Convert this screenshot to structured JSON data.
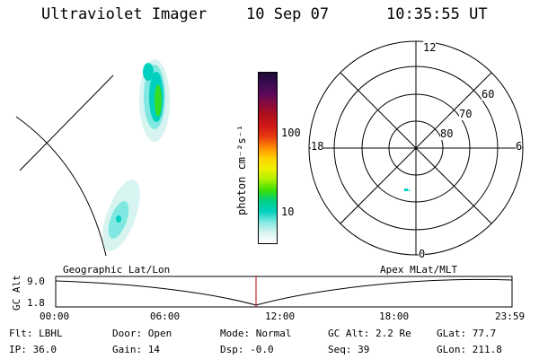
{
  "header": {
    "instrument": "Ultraviolet Imager",
    "date": "10 Sep 07",
    "time": "10:35:55 UT"
  },
  "colorbar": {
    "unit_label": "photon cm⁻²s⁻¹",
    "ticks": [
      "100",
      "10"
    ],
    "colors": [
      "#1a0a33",
      "#3b0a4f",
      "#5a0a5a",
      "#8a0a3a",
      "#b0101a",
      "#d01818",
      "#e83a10",
      "#ff8a00",
      "#ffd000",
      "#f0f000",
      "#b0f000",
      "#40e000",
      "#00d080",
      "#00d0c0",
      "#80e8e0",
      "#d8f4f0",
      "#ffffff"
    ]
  },
  "polar_plot": {
    "mlt_labels": {
      "top": "12",
      "left": "18",
      "right": "6",
      "bottom": "0"
    },
    "lat_labels": [
      "60",
      "70",
      "80"
    ]
  },
  "track": {
    "left_label": "Geographic Lat/Lon",
    "right_label": "Apex MLat/MLT",
    "yaxis_title": "GC Alt",
    "y_ticks": [
      "9.0",
      "1.8"
    ],
    "x_ticks": [
      "00:00",
      "06:00",
      "12:00",
      "18:00",
      "23:59"
    ],
    "marker_color": "#c00000"
  },
  "status": {
    "flt": "Flt: LBHL",
    "ip": "IP: 36.0",
    "door": "Door: Open",
    "gain": "Gain: 14",
    "mode": "Mode: Normal",
    "dsp": "Dsp:   -0.0",
    "gc_alt": "GC Alt: 2.2 Re",
    "seq": "Seq: 39",
    "glat": "GLat:  77.7",
    "glon": "GLon: 211.8"
  }
}
